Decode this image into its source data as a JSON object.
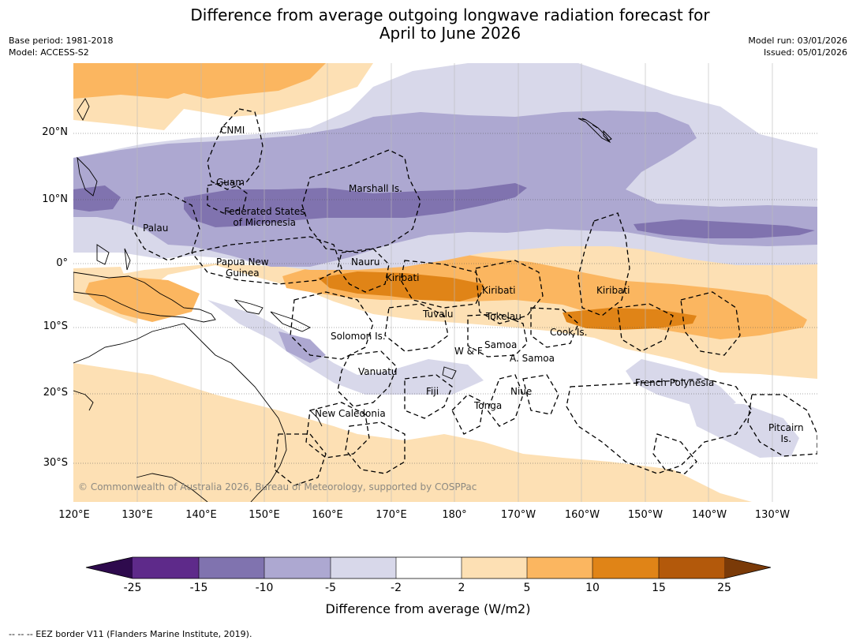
{
  "title": {
    "line1": "Difference from average outgoing longwave radiation forecast for",
    "line2": "April to June 2026"
  },
  "meta": {
    "base_period": "Base period: 1981-2018",
    "model": "Model: ACCESS-S2",
    "model_run": "Model run: 03/01/2026",
    "issued": "Issued: 05/01/2026"
  },
  "map": {
    "lat_labels": [
      "20°N",
      "10°N",
      "0°",
      "10°S",
      "20°S",
      "30°S"
    ],
    "lon_labels": [
      "120°E",
      "130°E",
      "140°E",
      "150°E",
      "160°E",
      "170°E",
      "180°",
      "170°W",
      "160°W",
      "150°W",
      "140°W",
      "130°W"
    ],
    "places": {
      "cnmi": "CNMI",
      "guam": "Guam",
      "marshall": "Marshall Is.",
      "fsm": "Federated States\nof Micronesia",
      "palau": "Palau",
      "png": "Papua New\nGuinea",
      "nauru": "Nauru",
      "kiribati_west": "Kiribati",
      "kiribati_central": "Kiribati",
      "kiribati_east": "Kiribati",
      "tuvalu": "Tuvalu",
      "tokelau": "Tokelau",
      "cook": "Cook Is.",
      "solomon": "Solomon Is.",
      "wf": "W & F",
      "samoa": "Samoa",
      "asamoa": "A. Samoa",
      "vanuatu": "Vanuatu",
      "fiji": "Fiji",
      "niue": "Niue",
      "tonga": "Tonga",
      "fp": "French Polynesia",
      "newcal": "New Caledonia",
      "pitcairn": "Pitcairn\nIs."
    },
    "copyright": "© Commonwealth of Australia 2026, Bureau of Meteorology, supported by COSPPac"
  },
  "colorbar": {
    "ticks": [
      "-25",
      "-15",
      "-10",
      "-5",
      "-2",
      "2",
      "5",
      "10",
      "15",
      "25"
    ],
    "colors": {
      "below": "#2e0a4d",
      "n25_15": "#5e2a8a",
      "n15_10": "#8073af",
      "n10_5": "#ada8d1",
      "n5_2": "#d8d8ea",
      "n2_2": "#ffffff",
      "p2_5": "#fde0b4",
      "p5_10": "#fbb660",
      "p10_15": "#e08417",
      "p15_25": "#b3590b",
      "above": "#7a3a08"
    },
    "label": "Difference from average (W/m2)"
  },
  "footnote": "--  --  -- EEZ border V11 (Flanders Marine Institute, 2019)."
}
